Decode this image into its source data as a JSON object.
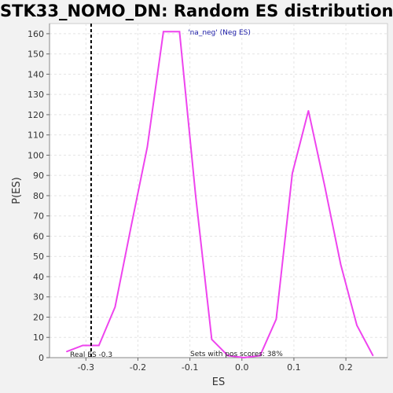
{
  "chart_data": {
    "type": "line",
    "title": "STK33_NOMO_DN: Random ES distribution",
    "xlabel": "ES",
    "ylabel": "P(ES)",
    "xlim": [
      -0.37,
      0.28
    ],
    "ylim": [
      0,
      165
    ],
    "xticks": [
      -0.3,
      -0.2,
      -0.1,
      0.0,
      0.1,
      0.2
    ],
    "xtick_labels": [
      "-0.3",
      "-0.2",
      "-0.1",
      "0.0",
      "0.1",
      "0.2"
    ],
    "yticks": [
      0,
      10,
      20,
      30,
      40,
      50,
      60,
      70,
      80,
      90,
      100,
      110,
      120,
      130,
      140,
      150,
      160
    ],
    "grid": true,
    "series": [
      {
        "name": "'na_neg' (Neg ES)",
        "color": "#ee44ee",
        "x": [
          -0.337,
          -0.306,
          -0.275,
          -0.244,
          -0.213,
          -0.182,
          -0.151,
          -0.12,
          -0.089,
          -0.058,
          -0.027,
          0.004,
          0.035,
          0.066,
          0.097,
          0.128,
          0.159,
          0.19,
          0.221,
          0.252
        ],
        "y": [
          3,
          6,
          6,
          25,
          65,
          104,
          161,
          161,
          80,
          9,
          1,
          0,
          1,
          19,
          91,
          122,
          85,
          46,
          16,
          1
        ]
      }
    ],
    "real_es": -0.29,
    "annotations": {
      "real_es": "Real ES -0.3",
      "pos_scores": "Sets with pos scores: 38%"
    }
  }
}
